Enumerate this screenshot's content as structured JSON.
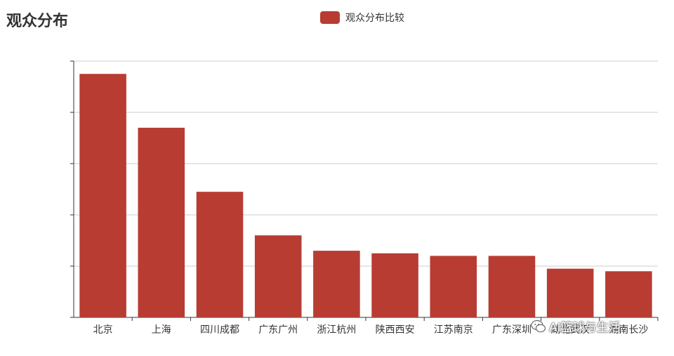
{
  "header": {
    "title": "观众分布"
  },
  "legend": {
    "label": "观众分布比较",
    "color": "#b83c32"
  },
  "chart_data": {
    "type": "bar",
    "title": "观众分布",
    "categories": [
      "北京",
      "上海",
      "四川成都",
      "广东广州",
      "浙江杭州",
      "陕西西安",
      "江苏南京",
      "广东深圳",
      "湖北武汉",
      "湖南长沙"
    ],
    "series": [
      {
        "name": "观众分布比较",
        "values": [
          9.5,
          7.4,
          4.9,
          3.2,
          2.6,
          2.5,
          2.4,
          2.4,
          1.9,
          1.8
        ],
        "color": "#b83c32"
      }
    ],
    "xlabel": "",
    "ylabel": "",
    "ylim": [
      0,
      10
    ],
    "yticks": [
      0,
      2,
      4,
      6,
      8,
      10
    ],
    "y_tick_labels_visible": false,
    "grid": true,
    "legend_position": "top-center"
  },
  "watermark": {
    "text": "AI篮球与生活"
  }
}
